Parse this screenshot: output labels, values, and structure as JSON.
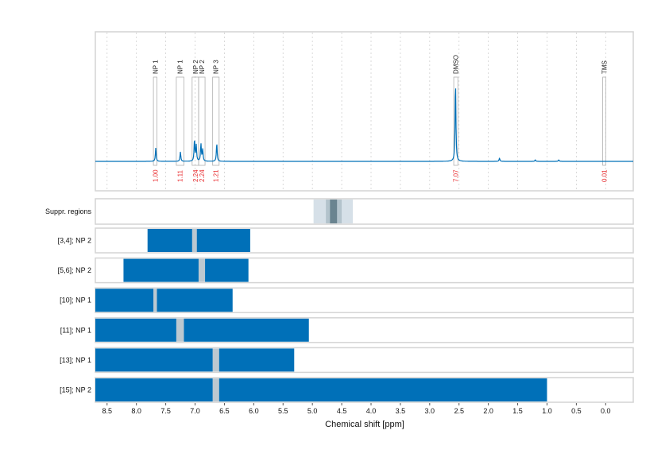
{
  "chart_data": {
    "type": "line",
    "xlabel": "Chemical shift [ppm]",
    "ylabel": "",
    "xlim": [
      8.7,
      -0.47
    ],
    "x_reversed": true,
    "x_ticks": [
      "8.5",
      "8.0",
      "7.5",
      "7.0",
      "6.5",
      "6.0",
      "5.5",
      "5.0",
      "4.5",
      "4.0",
      "3.5",
      "3.0",
      "2.5",
      "2.0",
      "1.5",
      "1.0",
      "0.5",
      "0.0"
    ],
    "grid": true,
    "colors": {
      "spectrum": "#0070b8",
      "bar": "#0070b8",
      "gap": "#bcc8d0",
      "integral": "#e8282b",
      "border": "#d4d4d4"
    },
    "spectrum_peaks": [
      {
        "ppm": 7.67,
        "intensity": 17
      },
      {
        "ppm": 7.25,
        "intensity": 12
      },
      {
        "ppm": 7.01,
        "intensity": 28
      },
      {
        "ppm": 6.98,
        "intensity": 20
      },
      {
        "ppm": 6.9,
        "intensity": 22
      },
      {
        "ppm": 6.87,
        "intensity": 15
      },
      {
        "ppm": 6.63,
        "intensity": 23
      },
      {
        "ppm": 2.56,
        "intensity": 102
      },
      {
        "ppm": 1.81,
        "intensity": 4
      },
      {
        "ppm": 1.2,
        "intensity": 2
      },
      {
        "ppm": 0.8,
        "intensity": 2
      }
    ],
    "annotations": [
      {
        "label": "NP 1",
        "integral": "1.00",
        "from": 7.71,
        "to": 7.65
      },
      {
        "label": "NP 1",
        "integral": "1.11",
        "from": 7.32,
        "to": 7.19
      },
      {
        "label": "NP 2",
        "integral": "2.24",
        "from": 7.05,
        "to": 6.94
      },
      {
        "label": "NP 2",
        "integral": "2.24",
        "from": 6.94,
        "to": 6.83
      },
      {
        "label": "NP 3",
        "integral": "1.21",
        "from": 6.7,
        "to": 6.59
      },
      {
        "label": "DMSO",
        "integral": "7.07",
        "from": 2.59,
        "to": 2.52
      },
      {
        "label": "TMS",
        "integral": "0.01",
        "from": 0.05,
        "to": 0.0
      }
    ],
    "suppression": {
      "label": "Suppr. regions",
      "bands": [
        {
          "from": 4.98,
          "to": 4.31,
          "color": "#d6e0e8"
        },
        {
          "from": 4.77,
          "to": 4.5,
          "color": "#b3c3cc"
        },
        {
          "from": 4.7,
          "to": 4.58,
          "color": "#6a8490"
        }
      ]
    },
    "rows": [
      {
        "label": "[3,4]; NP 2",
        "start": 7.81,
        "gap": [
          7.05,
          6.97
        ],
        "end": 6.06
      },
      {
        "label": "[5,6]; NP 2",
        "start": 8.22,
        "gap": [
          6.94,
          6.83
        ],
        "end": 6.09
      },
      {
        "label": "[10]; NP 1",
        "start": 8.7,
        "gap": [
          7.71,
          7.65
        ],
        "end": 6.36
      },
      {
        "label": "[11]; NP 1",
        "start": 8.7,
        "gap": [
          7.32,
          7.19
        ],
        "end": 5.06
      },
      {
        "label": "[13]; NP 1",
        "start": 8.7,
        "gap": [
          6.7,
          6.59
        ],
        "end": 5.31
      },
      {
        "label": "[15]; NP 2",
        "start": 8.7,
        "gap": [
          6.7,
          6.59
        ],
        "end": 1.0
      }
    ]
  }
}
